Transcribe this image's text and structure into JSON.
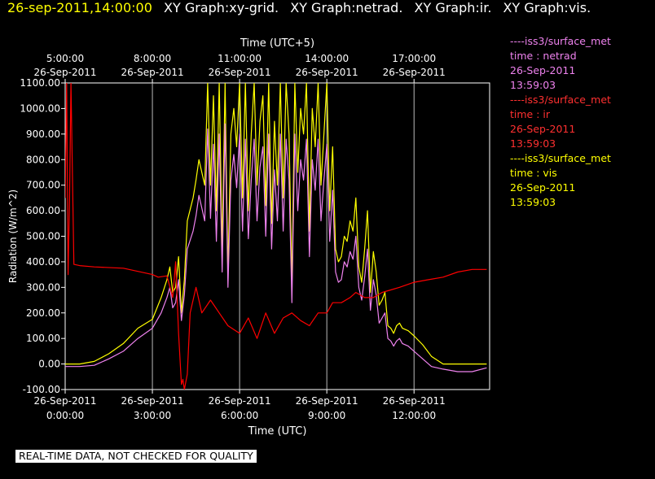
{
  "header": {
    "timestamp": "26-sep-2011,14:00:00",
    "titles": [
      "XY Graph:xy-grid.",
      "XY Graph:netrad.",
      "XY Graph:ir.",
      "XY Graph:vis."
    ]
  },
  "footer": {
    "warning": "REAL-TIME DATA, NOT CHECKED FOR QUALITY"
  },
  "legend": [
    {
      "source": "----iss3/surface_met",
      "label": "time : netrad",
      "date": "26-Sep-2011",
      "time": "13:59:03",
      "color": "#ee82ee"
    },
    {
      "source": "----iss3/surface_met",
      "label": "time : ir",
      "date": "26-Sep-2011",
      "time": "13:59:03",
      "color": "#ff0000"
    },
    {
      "source": "----iss3/surface_met",
      "label": "time : vis",
      "date": "26-Sep-2011",
      "time": "13:59:03",
      "color": "#ffff00"
    }
  ],
  "chart_data": {
    "type": "line",
    "xlabel": "Time (UTC)",
    "x2label": "Time (UTC+5)",
    "ylabel": "Radiation (W/m^2)",
    "xlim": [
      0,
      14.6
    ],
    "ylim": [
      -100,
      1100
    ],
    "grid": true,
    "x_ticks": [
      {
        "v": 0,
        "date": "26-Sep-2011",
        "time": "0:00:00"
      },
      {
        "v": 3,
        "date": "26-Sep-2011",
        "time": "3:00:00"
      },
      {
        "v": 6,
        "date": "26-Sep-2011",
        "time": "6:00:00"
      },
      {
        "v": 9,
        "date": "26-Sep-2011",
        "time": "9:00:00"
      },
      {
        "v": 12,
        "date": "26-Sep-2011",
        "time": "12:00:00"
      }
    ],
    "x2_ticks": [
      {
        "v": 0,
        "date": "26-Sep-2011",
        "time": "5:00:00"
      },
      {
        "v": 3,
        "date": "26-Sep-2011",
        "time": "8:00:00"
      },
      {
        "v": 6,
        "date": "26-Sep-2011",
        "time": "11:00:00"
      },
      {
        "v": 9,
        "date": "26-Sep-2011",
        "time": "14:00:00"
      },
      {
        "v": 12,
        "date": "26-Sep-2011",
        "time": "17:00:00"
      }
    ],
    "y_ticks": [
      "-100.00",
      "0.00",
      "100.00",
      "200.00",
      "300.00",
      "400.00",
      "500.00",
      "600.00",
      "700.00",
      "800.00",
      "900.00",
      "1000.00",
      "1100.00"
    ],
    "series": [
      {
        "key": "vis",
        "color": "#ffff00",
        "x": [
          0,
          0.5,
          1,
          1.5,
          2,
          2.5,
          3,
          3.3,
          3.5,
          3.6,
          3.7,
          3.8,
          3.9,
          4.0,
          4.1,
          4.2,
          4.4,
          4.5,
          4.6,
          4.8,
          4.9,
          5.0,
          5.1,
          5.2,
          5.3,
          5.4,
          5.5,
          5.6,
          5.7,
          5.8,
          5.9,
          6.0,
          6.1,
          6.2,
          6.3,
          6.4,
          6.5,
          6.6,
          6.7,
          6.8,
          6.9,
          7.0,
          7.1,
          7.2,
          7.3,
          7.4,
          7.5,
          7.6,
          7.7,
          7.8,
          7.9,
          8.0,
          8.1,
          8.2,
          8.3,
          8.4,
          8.5,
          8.6,
          8.7,
          8.8,
          8.9,
          9.0,
          9.1,
          9.2,
          9.3,
          9.4,
          9.5,
          9.6,
          9.7,
          9.8,
          9.9,
          10.0,
          10.1,
          10.2,
          10.3,
          10.4,
          10.5,
          10.6,
          10.7,
          10.8,
          10.9,
          11.0,
          11.1,
          11.2,
          11.3,
          11.4,
          11.5,
          11.6,
          11.8,
          12.0,
          12.3,
          12.6,
          13.0,
          13.5,
          14.0,
          14.5
        ],
        "y": [
          0,
          0,
          10,
          40,
          80,
          140,
          175,
          260,
          330,
          380,
          280,
          300,
          420,
          200,
          330,
          560,
          650,
          720,
          800,
          700,
          1100,
          700,
          1050,
          600,
          1100,
          450,
          1100,
          350,
          900,
          1000,
          850,
          1100,
          650,
          1100,
          600,
          900,
          1100,
          700,
          950,
          1050,
          620,
          1100,
          550,
          950,
          700,
          1100,
          650,
          1100,
          900,
          300,
          1100,
          750,
          1000,
          900,
          1100,
          520,
          1000,
          850,
          1100,
          700,
          900,
          1100,
          600,
          850,
          450,
          400,
          420,
          500,
          480,
          560,
          520,
          650,
          380,
          320,
          450,
          600,
          280,
          440,
          360,
          230,
          250,
          280,
          150,
          140,
          120,
          150,
          160,
          140,
          130,
          110,
          75,
          30,
          0,
          0,
          0,
          0
        ]
      },
      {
        "key": "netrad",
        "color": "#ee82ee",
        "x": [
          0,
          0.5,
          1,
          1.5,
          2,
          2.5,
          3,
          3.3,
          3.5,
          3.6,
          3.7,
          3.8,
          3.9,
          4.0,
          4.1,
          4.2,
          4.4,
          4.5,
          4.6,
          4.8,
          4.9,
          5.0,
          5.1,
          5.2,
          5.3,
          5.4,
          5.5,
          5.6,
          5.7,
          5.8,
          5.9,
          6.0,
          6.1,
          6.2,
          6.3,
          6.4,
          6.5,
          6.6,
          6.7,
          6.8,
          6.9,
          7.0,
          7.1,
          7.2,
          7.3,
          7.4,
          7.5,
          7.6,
          7.7,
          7.8,
          7.9,
          8.0,
          8.1,
          8.2,
          8.3,
          8.4,
          8.5,
          8.6,
          8.7,
          8.8,
          8.9,
          9.0,
          9.1,
          9.2,
          9.3,
          9.4,
          9.5,
          9.6,
          9.7,
          9.8,
          9.9,
          10.0,
          10.1,
          10.2,
          10.3,
          10.4,
          10.5,
          10.6,
          10.7,
          10.8,
          10.9,
          11.0,
          11.1,
          11.2,
          11.3,
          11.4,
          11.5,
          11.6,
          11.8,
          12.0,
          12.3,
          12.6,
          13.0,
          13.5,
          14.0,
          14.5
        ],
        "y": [
          -10,
          -10,
          -5,
          20,
          50,
          100,
          140,
          200,
          260,
          300,
          220,
          240,
          330,
          170,
          270,
          450,
          520,
          580,
          660,
          560,
          920,
          570,
          860,
          480,
          900,
          360,
          940,
          300,
          720,
          820,
          690,
          900,
          520,
          880,
          490,
          720,
          880,
          560,
          770,
          850,
          500,
          900,
          450,
          760,
          560,
          900,
          520,
          880,
          720,
          240,
          900,
          600,
          800,
          720,
          880,
          420,
          800,
          680,
          880,
          560,
          720,
          860,
          480,
          680,
          360,
          320,
          330,
          400,
          380,
          440,
          410,
          500,
          300,
          250,
          340,
          450,
          210,
          330,
          270,
          160,
          180,
          200,
          100,
          90,
          70,
          90,
          100,
          80,
          70,
          50,
          20,
          -10,
          -20,
          -30,
          -30,
          -15
        ]
      },
      {
        "key": "ir",
        "color": "#ff0000",
        "x": [
          0,
          0.05,
          0.1,
          0.15,
          0.2,
          0.3,
          0.5,
          1,
          2,
          3,
          3.2,
          3.5,
          3.7,
          3.8,
          3.9,
          4.0,
          4.05,
          4.1,
          4.2,
          4.3,
          4.5,
          4.7,
          5.0,
          5.3,
          5.6,
          6.0,
          6.3,
          6.6,
          6.9,
          7.2,
          7.5,
          7.8,
          8.1,
          8.4,
          8.7,
          9.0,
          9.2,
          9.5,
          9.8,
          10.0,
          10.3,
          10.6,
          10.9,
          11.2,
          11.5,
          12.0,
          12.5,
          13,
          13.5,
          14,
          14.5
        ],
        "y": [
          650,
          1100,
          350,
          650,
          1100,
          390,
          385,
          380,
          375,
          350,
          340,
          345,
          260,
          400,
          120,
          -80,
          -60,
          -100,
          -40,
          200,
          300,
          200,
          250,
          200,
          150,
          120,
          180,
          100,
          200,
          120,
          180,
          200,
          170,
          150,
          200,
          200,
          240,
          240,
          260,
          280,
          260,
          260,
          280,
          290,
          300,
          320,
          330,
          340,
          360,
          370,
          370
        ]
      }
    ]
  }
}
